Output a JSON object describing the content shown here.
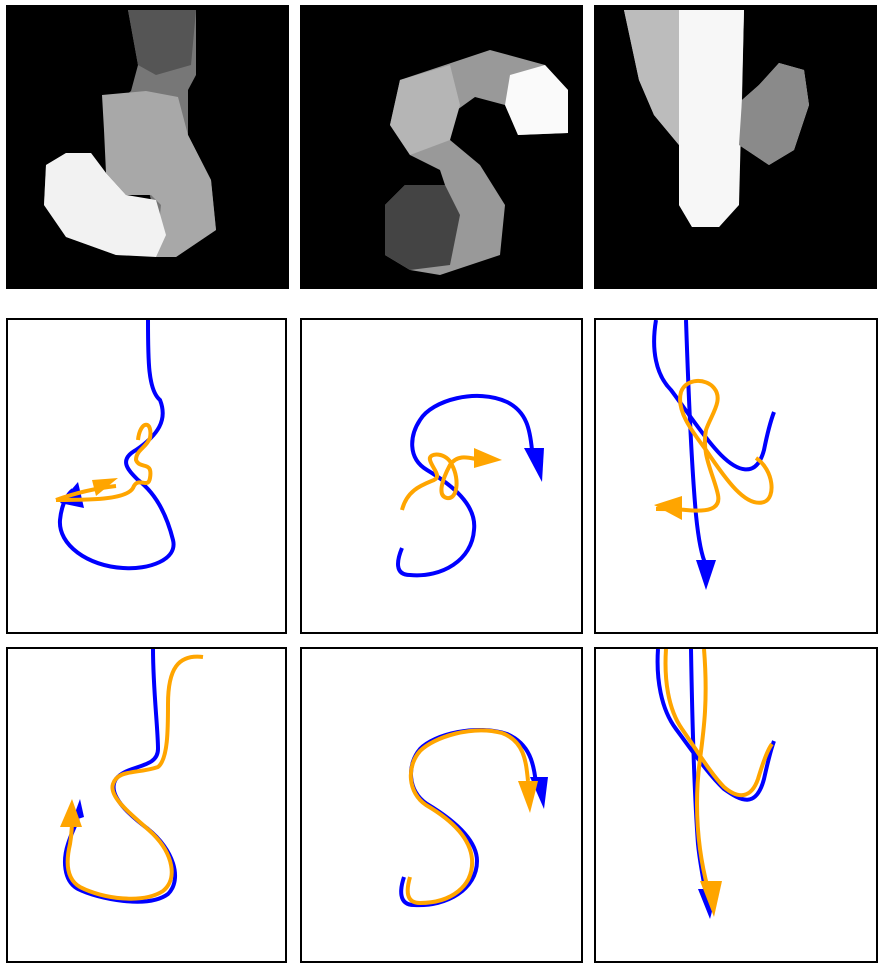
{
  "figure": {
    "rows": 3,
    "cols": 3,
    "row_roles": [
      "grayscale-glyph-image",
      "trajectory-prediction-early",
      "trajectory-prediction-final"
    ],
    "legend": {
      "reference_color": "#0000ff",
      "predicted_color": "#ffa500",
      "image_background": "#000000",
      "panel_border": "#000000"
    },
    "panels": [
      {
        "id": "img-1",
        "kind": "image",
        "glyph": "S-stroke (white head, bottom-left)"
      },
      {
        "id": "img-2",
        "kind": "image",
        "glyph": "S-stroke (white head, top-right)"
      },
      {
        "id": "img-3",
        "kind": "image",
        "glyph": "vertical stroke with hook"
      },
      {
        "id": "traj-2-1",
        "kind": "trajectory",
        "reference": "blue",
        "prediction": "orange"
      },
      {
        "id": "traj-2-2",
        "kind": "trajectory",
        "reference": "blue",
        "prediction": "orange"
      },
      {
        "id": "traj-2-3",
        "kind": "trajectory",
        "reference": "blue",
        "prediction": "orange"
      },
      {
        "id": "traj-3-1",
        "kind": "trajectory",
        "reference": "blue",
        "prediction": "orange"
      },
      {
        "id": "traj-3-2",
        "kind": "trajectory",
        "reference": "blue",
        "prediction": "orange"
      },
      {
        "id": "traj-3-3",
        "kind": "trajectory",
        "reference": "blue",
        "prediction": "orange"
      }
    ]
  }
}
